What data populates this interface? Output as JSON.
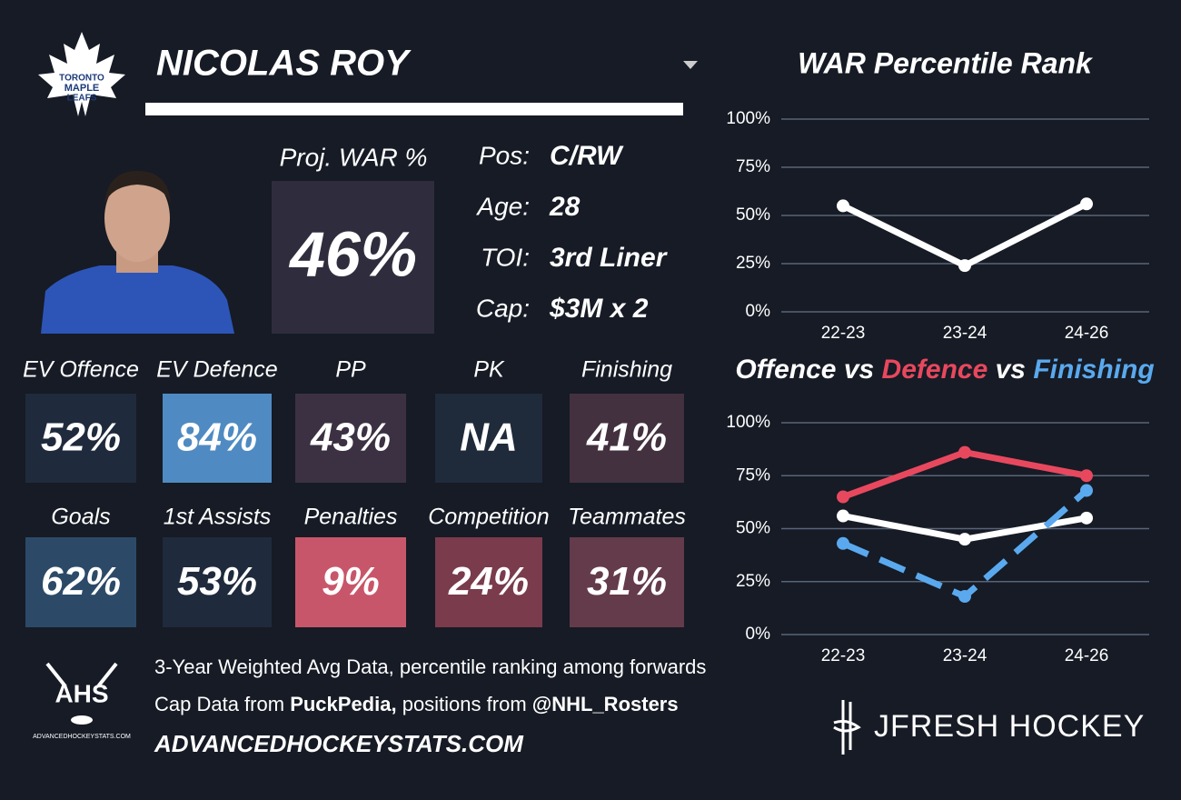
{
  "header": {
    "logo_lines": [
      "TORONTO",
      "MAPLE",
      "LEAFS"
    ],
    "player_name": "NICOLAS ROY"
  },
  "projection": {
    "label": "Proj. WAR %",
    "value": "46%"
  },
  "bio": [
    {
      "label": "Pos:",
      "value": "C/RW"
    },
    {
      "label": "Age:",
      "value": "28"
    },
    {
      "label": "TOI:",
      "value": "3rd Liner"
    },
    {
      "label": "Cap:",
      "value": "$3M x 2"
    }
  ],
  "tiles": [
    {
      "label": "EV Offence",
      "value": "52%",
      "color": "#1f2b3c"
    },
    {
      "label": "EV Defence",
      "value": "84%",
      "color": "#4f8bc2"
    },
    {
      "label": "PP",
      "value": "43%",
      "color": "#3c3142"
    },
    {
      "label": "PK",
      "value": "NA",
      "color": "#1f2b3a"
    },
    {
      "label": "Finishing",
      "value": "41%",
      "color": "#43313f"
    },
    {
      "label": "Goals",
      "value": "62%",
      "color": "#2c4a68"
    },
    {
      "label": "1st Assists",
      "value": "53%",
      "color": "#1f2b3c"
    },
    {
      "label": "Penalties",
      "value": "9%",
      "color": "#c8566a"
    },
    {
      "label": "Competition",
      "value": "24%",
      "color": "#7a3b4d"
    },
    {
      "label": "Teammates",
      "value": "31%",
      "color": "#643b4b"
    }
  ],
  "footer": {
    "ahs_logo": "AHS",
    "ahs_site": "ADVANCEDHOCKEYSTATS.COM",
    "line1": "3-Year Weighted Avg Data, percentile ranking among forwards",
    "line2": [
      "Cap Data from",
      "PuckPedia,",
      "positions from",
      "@NHL_Rosters"
    ],
    "site": "ADVANCEDHOCKEYSTATS.COM",
    "brand": "JFRESH HOCKEY"
  },
  "chart_data": [
    {
      "type": "line",
      "title": "WAR Percentile Rank",
      "categories": [
        "22-23",
        "23-24",
        "24-26"
      ],
      "values": [
        55,
        24,
        56
      ],
      "color": "#ffffff",
      "ylim": [
        0,
        100
      ],
      "yticks": [
        {
          "value": 0,
          "label": "0%"
        },
        {
          "value": 25,
          "label": "25%"
        },
        {
          "value": 50,
          "label": "50%"
        },
        {
          "value": 75,
          "label": "75%"
        },
        {
          "value": 100,
          "label": "100%"
        }
      ],
      "grid": true
    },
    {
      "type": "line",
      "title_separator": "vs",
      "categories": [
        "22-23",
        "23-24",
        "24-26"
      ],
      "series": [
        {
          "name": "Offence",
          "color": "#ffffff",
          "values": [
            56,
            45,
            55
          ]
        },
        {
          "name": "Defence",
          "color": "#e8485e",
          "values": [
            65,
            86,
            75
          ]
        },
        {
          "name": "Finishing",
          "color": "#5aa9ee",
          "values": [
            43,
            18,
            68
          ],
          "dashed": true
        }
      ],
      "ylim": [
        0,
        100
      ],
      "yticks": [
        {
          "value": 0,
          "label": "0%"
        },
        {
          "value": 25,
          "label": "25%"
        },
        {
          "value": 50,
          "label": "50%"
        },
        {
          "value": 75,
          "label": "75%"
        },
        {
          "value": 100,
          "label": "100%"
        }
      ],
      "grid": true
    }
  ]
}
